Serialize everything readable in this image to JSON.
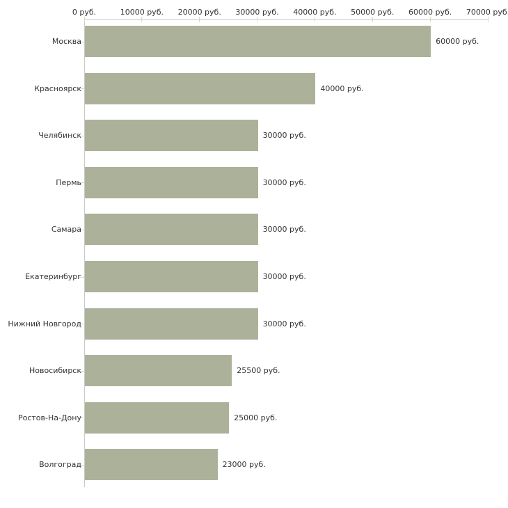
{
  "chart_data": {
    "type": "bar",
    "orientation": "horizontal",
    "title": "",
    "unit": "руб.",
    "categories": [
      "Москва",
      "Красноярск",
      "Челябинск",
      "Пермь",
      "Самара",
      "Екатеринбург",
      "Нижний Новгород",
      "Новосибирск",
      "Ростов-На-Дону",
      "Волгоград"
    ],
    "values": [
      60000,
      40000,
      30000,
      30000,
      30000,
      30000,
      30000,
      25500,
      25000,
      23000
    ],
    "bar_labels": [
      "60000 руб.",
      "40000 руб.",
      "30000 руб.",
      "30000 руб.",
      "30000 руб.",
      "30000 руб.",
      "30000 руб.",
      "25500 руб.",
      "25000 руб.",
      "23000 руб."
    ],
    "x_axis": {
      "position": "top",
      "range": [
        0,
        70000
      ],
      "ticks": [
        0,
        10000,
        20000,
        30000,
        40000,
        50000,
        60000,
        70000
      ],
      "tick_labels": [
        "0 руб.",
        "10000 руб.",
        "20000 руб.",
        "30000 руб.",
        "40000 руб.",
        "50000 руб.",
        "60000 руб.",
        "70000 руб."
      ]
    },
    "grid": false,
    "legend": false,
    "colors": {
      "bar": "#acb29a",
      "axis_line": "#c9c9c9",
      "tick_mark": "#d9dab8",
      "text": "#333333",
      "background": "#ffffff"
    }
  }
}
